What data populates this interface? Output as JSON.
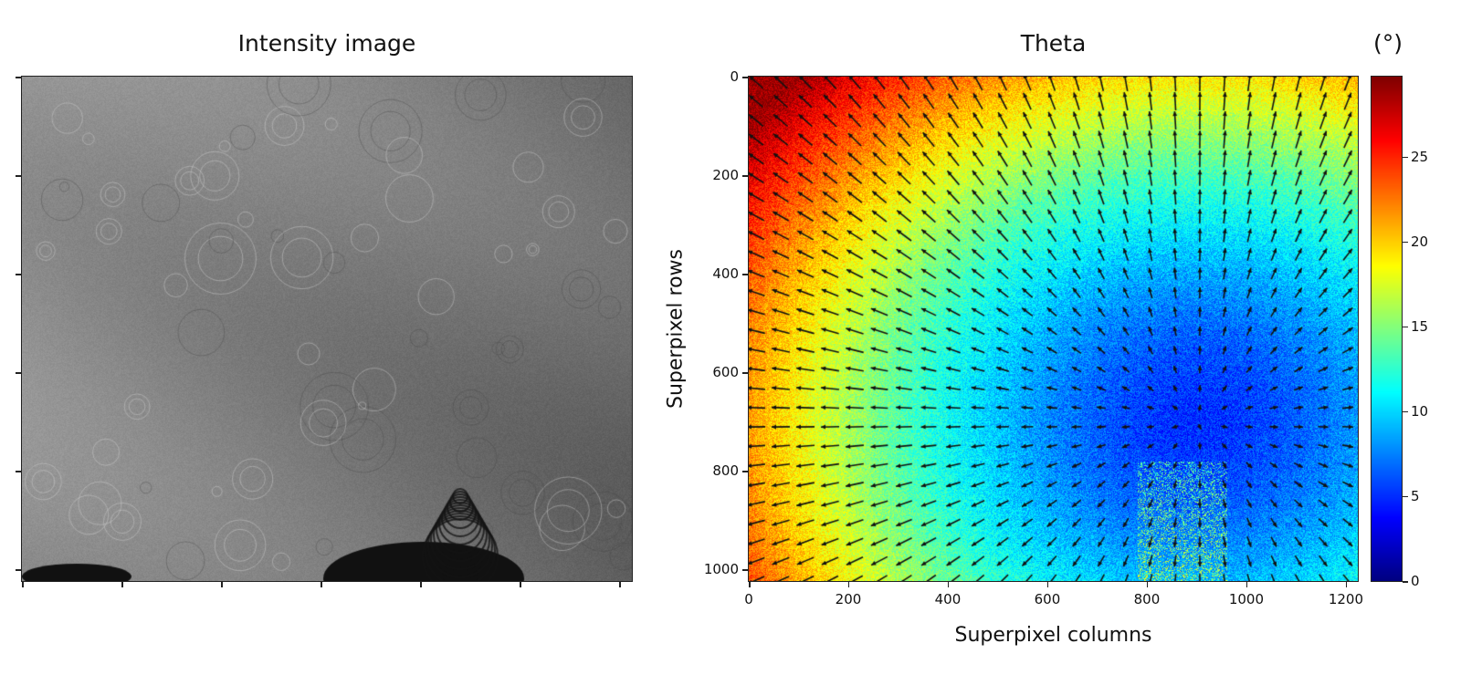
{
  "chart_data": [
    {
      "type": "image",
      "title": "Intensity image",
      "colormap": "gray",
      "xticks_labeled": false,
      "yticks_labeled": false
    },
    {
      "type": "heatmap",
      "title": "Theta",
      "xlabel": "Superpixel columns",
      "ylabel": "Superpixel rows",
      "xlim": [
        0,
        1224
      ],
      "ylim": [
        1024,
        0
      ],
      "xticks": [
        "0",
        "200",
        "400",
        "600",
        "800",
        "1000",
        "1200"
      ],
      "yticks": [
        "0",
        "200",
        "400",
        "600",
        "800",
        "1000"
      ],
      "colormap": "jet",
      "overlay": "quiver arrows pointing away from the low-theta region",
      "colorbar": {
        "label": "(°)",
        "range": [
          0,
          29.7
        ],
        "ticks": [
          "0",
          "5",
          "10",
          "15",
          "20",
          "25"
        ]
      },
      "description_values": {
        "top_left_max": 29,
        "minimum_region_center": [
          900,
          700
        ],
        "minimum_value": 5
      }
    }
  ]
}
